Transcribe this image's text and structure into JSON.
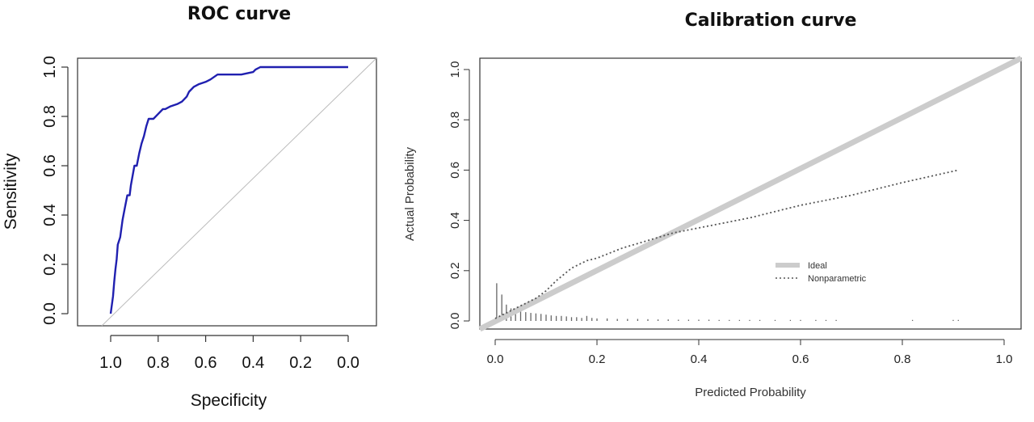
{
  "charts": [
    {
      "id": "roc",
      "title": "ROC curve",
      "xlabel": "Specificity",
      "ylabel": "Sensitivity"
    },
    {
      "id": "calibration",
      "title": "Calibration curve",
      "xlabel": "Predicted Probability",
      "ylabel": "Actual Probability",
      "legend": {
        "position": "center-right",
        "items": [
          {
            "label": "Ideal",
            "style": "thick-solid",
            "color": "#cccccc"
          },
          {
            "label": "Nonparametric",
            "style": "dotted",
            "color": "#555555"
          }
        ]
      }
    }
  ],
  "chart_data": [
    {
      "type": "line",
      "title": "ROC curve",
      "xlabel": "Specificity",
      "ylabel": "Sensitivity",
      "x_reversed": true,
      "xlim": [
        1.0,
        0.0
      ],
      "ylim": [
        0.0,
        1.0
      ],
      "xticks": [
        "1.0",
        "0.8",
        "0.6",
        "0.4",
        "0.2",
        "0.0"
      ],
      "yticks": [
        "0.0",
        "0.2",
        "0.4",
        "0.6",
        "0.8",
        "1.0"
      ],
      "grid": false,
      "series": [
        {
          "color": "#2020b0",
          "x": [
            1.0,
            0.99,
            0.985,
            0.98,
            0.975,
            0.97,
            0.96,
            0.95,
            0.94,
            0.93,
            0.92,
            0.915,
            0.9,
            0.89,
            0.88,
            0.87,
            0.86,
            0.85,
            0.84,
            0.83,
            0.82,
            0.8,
            0.78,
            0.77,
            0.75,
            0.72,
            0.7,
            0.68,
            0.67,
            0.65,
            0.63,
            0.6,
            0.58,
            0.55,
            0.5,
            0.45,
            0.4,
            0.39,
            0.37,
            0.3,
            0.2,
            0.1,
            0.0
          ],
          "y": [
            0.0,
            0.07,
            0.13,
            0.18,
            0.22,
            0.28,
            0.31,
            0.38,
            0.43,
            0.48,
            0.48,
            0.52,
            0.6,
            0.6,
            0.65,
            0.69,
            0.72,
            0.76,
            0.79,
            0.79,
            0.79,
            0.81,
            0.83,
            0.83,
            0.84,
            0.85,
            0.86,
            0.88,
            0.9,
            0.92,
            0.93,
            0.94,
            0.95,
            0.97,
            0.97,
            0.97,
            0.98,
            0.99,
            1.0,
            1.0,
            1.0,
            1.0,
            1.0
          ]
        },
        {
          "color": "#bbbbbb",
          "x": [
            1.0,
            0.0
          ],
          "y": [
            0.0,
            1.0
          ]
        }
      ]
    },
    {
      "type": "line",
      "title": "Calibration curve",
      "xlabel": "Predicted Probability",
      "ylabel": "Actual Probability",
      "xlim": [
        0.0,
        1.0
      ],
      "ylim": [
        0.0,
        1.0
      ],
      "xticks": [
        "0.0",
        "0.2",
        "0.4",
        "0.6",
        "0.8",
        "1.0"
      ],
      "yticks": [
        "0.0",
        "0.2",
        "0.4",
        "0.6",
        "0.8",
        "1.0"
      ],
      "grid": false,
      "legend_position": "center-right",
      "series": [
        {
          "name": "Ideal",
          "color": "#cccccc",
          "x": [
            -0.03,
            1.03
          ],
          "y": [
            -0.03,
            1.03
          ]
        },
        {
          "name": "Nonparametric",
          "color": "#555555",
          "x": [
            0.0,
            0.02,
            0.05,
            0.08,
            0.1,
            0.12,
            0.15,
            0.18,
            0.2,
            0.25,
            0.3,
            0.35,
            0.4,
            0.5,
            0.6,
            0.7,
            0.8,
            0.91
          ],
          "y": [
            0.01,
            0.03,
            0.06,
            0.09,
            0.12,
            0.16,
            0.21,
            0.24,
            0.25,
            0.29,
            0.32,
            0.35,
            0.37,
            0.41,
            0.46,
            0.5,
            0.55,
            0.6
          ]
        }
      ],
      "rug": {
        "x": [
          0.003,
          0.013,
          0.022,
          0.031,
          0.04,
          0.05,
          0.06,
          0.07,
          0.08,
          0.09,
          0.1,
          0.11,
          0.12,
          0.13,
          0.14,
          0.15,
          0.16,
          0.17,
          0.18,
          0.19,
          0.2,
          0.22,
          0.24,
          0.26,
          0.28,
          0.3,
          0.32,
          0.34,
          0.36,
          0.38,
          0.4,
          0.42,
          0.44,
          0.46,
          0.48,
          0.5,
          0.52,
          0.55,
          0.58,
          0.6,
          0.63,
          0.65,
          0.67,
          0.82,
          0.9,
          0.91
        ],
        "h": [
          0.15,
          0.105,
          0.065,
          0.05,
          0.045,
          0.04,
          0.035,
          0.032,
          0.03,
          0.028,
          0.025,
          0.022,
          0.02,
          0.02,
          0.018,
          0.015,
          0.015,
          0.012,
          0.02,
          0.012,
          0.01,
          0.01,
          0.008,
          0.008,
          0.008,
          0.007,
          0.006,
          0.006,
          0.005,
          0.005,
          0.005,
          0.005,
          0.004,
          0.004,
          0.004,
          0.004,
          0.004,
          0.004,
          0.004,
          0.004,
          0.004,
          0.004,
          0.004,
          0.004,
          0.004,
          0.004
        ]
      }
    }
  ]
}
